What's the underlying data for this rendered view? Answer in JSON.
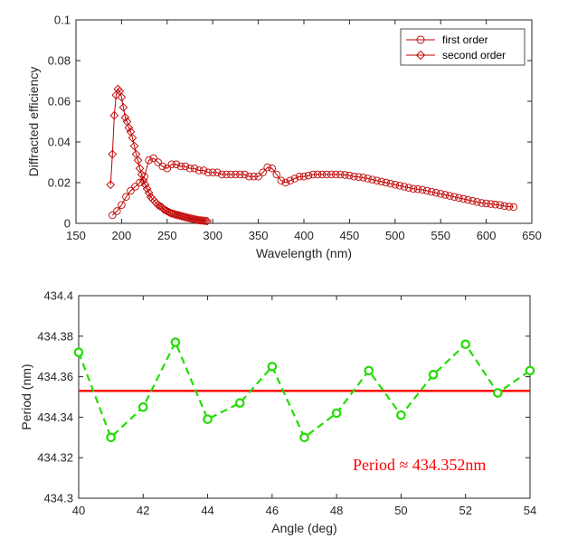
{
  "colors": {
    "chart1": "#c00000",
    "chart2_series": "#22dd00",
    "chart2_mean": "#ff0000",
    "axis": "#262626"
  },
  "chart_data": [
    {
      "type": "line",
      "title": "",
      "xlabel": "Wavelength (nm)",
      "ylabel": "Diffracted efficiency",
      "xlim": [
        150,
        650
      ],
      "ylim": [
        0,
        0.1
      ],
      "xticks": [
        "150",
        "200",
        "250",
        "300",
        "350",
        "400",
        "450",
        "500",
        "550",
        "600",
        "650"
      ],
      "yticks": [
        "0",
        "0.02",
        "0.04",
        "0.06",
        "0.08",
        "0.1"
      ],
      "grid": false,
      "legend_position": "top-right",
      "series": [
        {
          "name": "first order",
          "marker": "circle",
          "x": [
            190,
            195,
            200,
            205,
            210,
            215,
            220,
            225,
            230,
            235,
            240,
            245,
            250,
            255,
            260,
            265,
            270,
            275,
            280,
            285,
            290,
            295,
            300,
            305,
            310,
            315,
            320,
            325,
            330,
            335,
            340,
            345,
            350,
            355,
            360,
            365,
            370,
            375,
            380,
            385,
            390,
            395,
            400,
            405,
            410,
            415,
            420,
            425,
            430,
            435,
            440,
            445,
            450,
            455,
            460,
            465,
            470,
            475,
            480,
            485,
            490,
            495,
            500,
            505,
            510,
            515,
            520,
            525,
            530,
            535,
            540,
            545,
            550,
            555,
            560,
            565,
            570,
            575,
            580,
            585,
            590,
            595,
            600,
            605,
            610,
            615,
            620,
            625,
            630
          ],
          "y": [
            0.004,
            0.006,
            0.009,
            0.013,
            0.016,
            0.018,
            0.02,
            0.023,
            0.031,
            0.032,
            0.03,
            0.028,
            0.027,
            0.029,
            0.029,
            0.028,
            0.028,
            0.027,
            0.027,
            0.026,
            0.026,
            0.025,
            0.025,
            0.025,
            0.024,
            0.024,
            0.024,
            0.024,
            0.024,
            0.024,
            0.023,
            0.023,
            0.023,
            0.025,
            0.0275,
            0.027,
            0.024,
            0.021,
            0.02,
            0.021,
            0.022,
            0.023,
            0.023,
            0.0235,
            0.024,
            0.024,
            0.024,
            0.024,
            0.024,
            0.024,
            0.024,
            0.0238,
            0.0235,
            0.023,
            0.0228,
            0.0225,
            0.022,
            0.0215,
            0.021,
            0.0205,
            0.02,
            0.0195,
            0.019,
            0.0185,
            0.018,
            0.0175,
            0.017,
            0.0168,
            0.0165,
            0.016,
            0.0155,
            0.015,
            0.0145,
            0.014,
            0.0135,
            0.013,
            0.0125,
            0.012,
            0.0115,
            0.011,
            0.0105,
            0.01,
            0.0098,
            0.0095,
            0.0092,
            0.009,
            0.0085,
            0.0082,
            0.008
          ]
        },
        {
          "name": "second order",
          "marker": "diamond",
          "x": [
            188,
            190,
            192,
            194,
            196,
            198,
            200,
            202,
            204,
            206,
            208,
            210,
            212,
            214,
            216,
            218,
            220,
            222,
            224,
            226,
            228,
            230,
            232,
            234,
            236,
            238,
            240,
            242,
            244,
            246,
            248,
            250,
            252,
            254,
            256,
            258,
            260,
            262,
            264,
            266,
            268,
            270,
            272,
            274,
            276,
            278,
            280,
            282,
            284,
            286,
            288,
            290,
            292,
            294
          ],
          "y": [
            0.019,
            0.034,
            0.053,
            0.063,
            0.066,
            0.065,
            0.062,
            0.057,
            0.052,
            0.05,
            0.047,
            0.045,
            0.042,
            0.038,
            0.034,
            0.031,
            0.027,
            0.024,
            0.021,
            0.019,
            0.017,
            0.015,
            0.013,
            0.012,
            0.011,
            0.01,
            0.009,
            0.0085,
            0.008,
            0.007,
            0.0065,
            0.006,
            0.0055,
            0.005,
            0.0048,
            0.0045,
            0.0042,
            0.004,
            0.0038,
            0.0035,
            0.0033,
            0.003,
            0.0028,
            0.0026,
            0.0024,
            0.0022,
            0.002,
            0.0018,
            0.0016,
            0.0015,
            0.0014,
            0.0013,
            0.0012,
            0.0011
          ]
        }
      ]
    },
    {
      "type": "line",
      "title": "",
      "xlabel": "Angle (deg)",
      "ylabel": "Period (nm)",
      "xlim": [
        40,
        54
      ],
      "ylim": [
        434.3,
        434.4
      ],
      "xticks": [
        "40",
        "42",
        "44",
        "46",
        "48",
        "50",
        "52",
        "54"
      ],
      "yticks": [
        "434.3",
        "434.32",
        "434.34",
        "434.36",
        "434.38",
        "434.4"
      ],
      "grid": false,
      "series": [
        {
          "marker": "circle",
          "line": "dashed",
          "x": [
            40,
            41,
            42,
            43,
            44,
            45,
            46,
            47,
            48,
            49,
            50,
            51,
            52,
            53,
            54
          ],
          "y": [
            434.372,
            434.33,
            434.345,
            434.377,
            434.339,
            434.347,
            434.365,
            434.33,
            434.342,
            434.363,
            434.341,
            434.361,
            434.376,
            434.352,
            434.363
          ]
        }
      ],
      "reference_line": {
        "y": 434.353
      },
      "annotation": "Period ≈ 434.352nm"
    }
  ]
}
